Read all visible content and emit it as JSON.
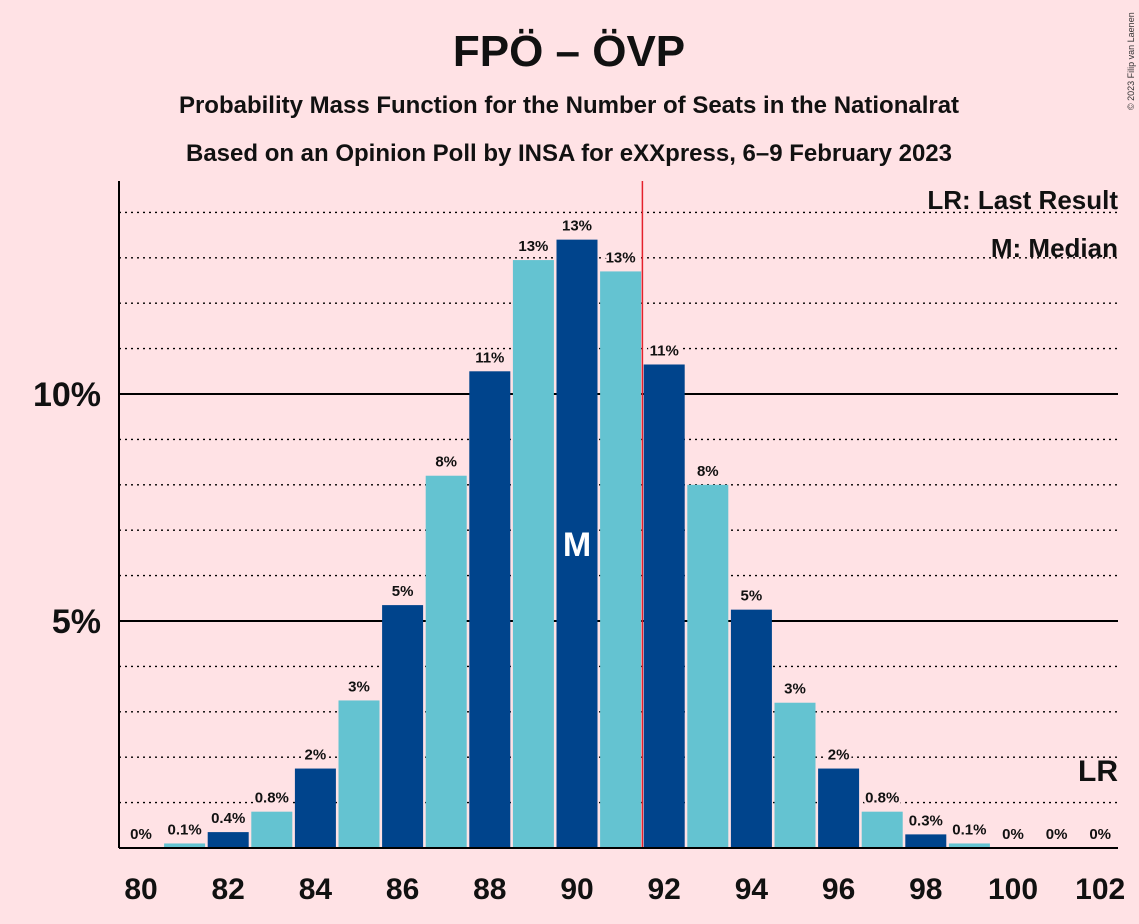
{
  "chart_data": {
    "type": "bar",
    "title": "FPÖ – ÖVP",
    "subtitle": "Probability Mass Function for the Number of Seats in the Nationalrat",
    "subtitle2": "Based on an Opinion Poll by INSA for eXXpress, 6–9 February 2023",
    "copyright": "© 2023 Filip van Laenen",
    "legend": [
      "LR: Last Result",
      "M: Median"
    ],
    "lr_label": "LR",
    "median_label": "M",
    "x": [
      80,
      81,
      82,
      83,
      84,
      85,
      86,
      87,
      88,
      89,
      90,
      91,
      92,
      93,
      94,
      95,
      96,
      97,
      98,
      99,
      100,
      101,
      102
    ],
    "values": [
      0,
      0.1,
      0.35,
      0.8,
      1.75,
      3.25,
      5.35,
      8.2,
      10.5,
      12.95,
      13.4,
      12.7,
      10.65,
      8.0,
      5.25,
      3.2,
      1.75,
      0.8,
      0.3,
      0.1,
      0,
      0,
      0
    ],
    "data_labels": [
      "0%",
      "0.1%",
      "0.4%",
      "0.8%",
      "2%",
      "3%",
      "5%",
      "8%",
      "11%",
      "13%",
      "13%",
      "13%",
      "11%",
      "8%",
      "5%",
      "3%",
      "2%",
      "0.8%",
      "0.3%",
      "0.1%",
      "0%",
      "0%",
      "0%"
    ],
    "x_ticks": [
      "80",
      "82",
      "84",
      "86",
      "88",
      "90",
      "92",
      "94",
      "96",
      "98",
      "100",
      "102"
    ],
    "y_ticks": [
      "5%",
      "10%"
    ],
    "y_tick_values": [
      5,
      10
    ],
    "ylim": [
      0,
      14.6
    ],
    "median_seat": 90,
    "last_result_seat": 102,
    "majority_line_x": 91.5,
    "colors": {
      "background": "#FFE2E5",
      "bar_dark": "#00448C",
      "bar_light": "#64C3D1",
      "majority_line": "#E4202B",
      "axis": "#000000"
    }
  }
}
